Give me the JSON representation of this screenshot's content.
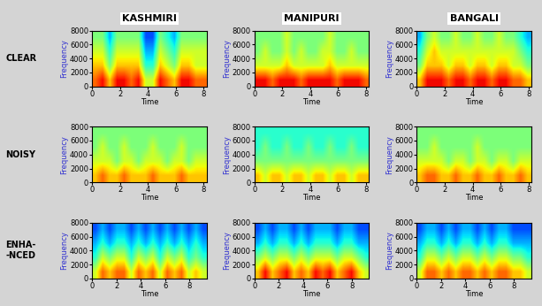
{
  "columns": [
    "KASHMIRI",
    "MANIPURI",
    "BANGALI"
  ],
  "rows": [
    "CLEAR",
    "NOISY",
    "ENHA-\n-NCED"
  ],
  "chart_data": [
    {
      "type": "heatmap",
      "xlabel": "Time",
      "ylabel": "Frequency",
      "color": "jet",
      "xlim": [
        0,
        8.2
      ],
      "ylim": [
        0,
        8000
      ],
      "xticks": [
        0,
        2,
        4,
        6,
        8
      ],
      "yticks": [
        0,
        2000,
        4000,
        6000,
        8000
      ],
      "cell_range": [
        0,
        10
      ],
      "cells": [
        [
          8,
          9,
          7,
          9,
          9,
          8,
          9,
          6,
          6,
          9,
          8,
          7,
          9,
          9,
          8,
          8
        ],
        [
          7,
          7,
          5,
          7,
          7,
          7,
          7,
          4,
          4,
          7,
          6,
          5,
          7,
          7,
          6,
          6
        ],
        [
          6,
          6,
          4,
          6,
          6,
          6,
          6,
          3,
          3,
          6,
          5,
          4,
          6,
          6,
          6,
          6
        ],
        [
          5,
          5,
          3,
          5,
          5,
          5,
          5,
          2,
          2,
          5,
          4,
          3,
          5,
          5,
          5,
          5
        ]
      ]
    },
    {
      "type": "heatmap",
      "xlabel": "Time",
      "ylabel": "Frequency",
      "color": "jet",
      "xlim": [
        0,
        8.2
      ],
      "ylim": [
        0,
        8000
      ],
      "xticks": [
        0,
        2,
        4,
        6,
        8
      ],
      "yticks": [
        0,
        2000,
        4000,
        6000,
        8000
      ],
      "cell_range": [
        0,
        10
      ],
      "cells": [
        [
          9,
          9,
          8,
          9,
          9,
          9,
          8,
          9,
          9,
          9,
          9,
          8,
          9,
          9,
          9,
          8
        ],
        [
          6,
          6,
          6,
          6,
          7,
          6,
          6,
          6,
          6,
          6,
          7,
          6,
          6,
          6,
          6,
          6
        ],
        [
          5,
          6,
          5,
          5,
          6,
          5,
          6,
          5,
          5,
          6,
          6,
          5,
          5,
          6,
          5,
          5
        ],
        [
          5,
          5,
          5,
          5,
          6,
          5,
          5,
          5,
          5,
          5,
          6,
          5,
          5,
          5,
          5,
          5
        ]
      ]
    },
    {
      "type": "heatmap",
      "xlabel": "Time",
      "ylabel": "Frequency",
      "color": "jet",
      "xlim": [
        0,
        8.2
      ],
      "ylim": [
        0,
        8000
      ],
      "xticks": [
        0,
        2,
        4,
        6,
        8
      ],
      "yticks": [
        0,
        2000,
        4000,
        6000,
        8000
      ],
      "cell_range": [
        0,
        10
      ],
      "cells": [
        [
          7,
          9,
          9,
          9,
          8,
          9,
          9,
          8,
          9,
          9,
          8,
          9,
          9,
          8,
          8,
          7
        ],
        [
          5,
          7,
          7,
          7,
          6,
          7,
          7,
          6,
          7,
          7,
          6,
          7,
          7,
          6,
          6,
          5
        ],
        [
          4,
          6,
          7,
          6,
          6,
          6,
          6,
          6,
          6,
          6,
          6,
          6,
          6,
          6,
          5,
          4
        ],
        [
          3,
          5,
          6,
          5,
          5,
          6,
          5,
          5,
          6,
          5,
          5,
          6,
          5,
          5,
          4,
          3
        ]
      ]
    },
    {
      "type": "heatmap",
      "xlabel": "Time",
      "ylabel": "Frequency",
      "color": "jet",
      "xlim": [
        0,
        8.2
      ],
      "ylim": [
        0,
        8000
      ],
      "xticks": [
        0,
        2,
        4,
        6,
        8
      ],
      "yticks": [
        0,
        2000,
        4000,
        6000,
        8000
      ],
      "cell_range": [
        0,
        10
      ],
      "cells": [
        [
          7,
          8,
          7,
          7,
          8,
          7,
          7,
          7,
          8,
          7,
          7,
          7,
          8,
          7,
          7,
          7
        ],
        [
          6,
          6,
          6,
          5,
          6,
          6,
          5,
          6,
          6,
          6,
          5,
          6,
          6,
          5,
          6,
          6
        ],
        [
          5,
          6,
          5,
          5,
          6,
          5,
          5,
          5,
          6,
          5,
          5,
          5,
          6,
          5,
          5,
          5
        ],
        [
          5,
          5,
          5,
          5,
          5,
          5,
          5,
          5,
          5,
          5,
          5,
          5,
          5,
          5,
          5,
          5
        ]
      ]
    },
    {
      "type": "heatmap",
      "xlabel": "Time",
      "ylabel": "Frequency",
      "color": "jet",
      "xlim": [
        0,
        8.2
      ],
      "ylim": [
        0,
        8000
      ],
      "xticks": [
        0,
        2,
        4,
        6,
        8
      ],
      "yticks": [
        0,
        2000,
        4000,
        6000,
        8000
      ],
      "cell_range": [
        0,
        10
      ],
      "cells": [
        [
          7,
          6,
          7,
          7,
          6,
          7,
          7,
          6,
          7,
          7,
          6,
          7,
          7,
          6,
          7,
          7
        ],
        [
          5,
          5,
          5,
          5,
          5,
          5,
          5,
          5,
          5,
          5,
          5,
          5,
          5,
          5,
          5,
          5
        ],
        [
          4,
          5,
          4,
          4,
          5,
          4,
          4,
          5,
          4,
          4,
          5,
          4,
          4,
          5,
          4,
          4
        ],
        [
          4,
          4,
          4,
          4,
          4,
          4,
          4,
          4,
          4,
          4,
          4,
          4,
          4,
          4,
          4,
          4
        ]
      ]
    },
    {
      "type": "heatmap",
      "xlabel": "Time",
      "ylabel": "Frequency",
      "color": "jet",
      "xlim": [
        0,
        8.2
      ],
      "ylim": [
        0,
        8000
      ],
      "xticks": [
        0,
        2,
        4,
        6,
        8
      ],
      "yticks": [
        0,
        2000,
        4000,
        6000,
        8000
      ],
      "cell_range": [
        0,
        10
      ],
      "cells": [
        [
          7,
          8,
          8,
          7,
          7,
          8,
          7,
          7,
          8,
          7,
          7,
          8,
          7,
          7,
          8,
          7
        ],
        [
          6,
          6,
          6,
          6,
          5,
          6,
          6,
          5,
          6,
          6,
          5,
          6,
          6,
          5,
          6,
          6
        ],
        [
          5,
          5,
          6,
          5,
          5,
          5,
          5,
          5,
          6,
          5,
          5,
          5,
          5,
          5,
          5,
          5
        ],
        [
          5,
          5,
          5,
          5,
          5,
          5,
          5,
          5,
          5,
          5,
          5,
          5,
          5,
          5,
          5,
          5
        ]
      ]
    },
    {
      "type": "heatmap",
      "xlabel": "Time",
      "ylabel": "Frequency",
      "color": "jet",
      "xlim": [
        0,
        9.4
      ],
      "ylim": [
        0,
        8000
      ],
      "xticks": [
        0,
        2,
        4,
        6,
        8
      ],
      "yticks": [
        0,
        2000,
        4000,
        6000,
        8000
      ],
      "cell_range": [
        0,
        10
      ],
      "cells": [
        [
          6,
          8,
          7,
          8,
          8,
          6,
          8,
          7,
          8,
          6,
          8,
          7,
          8,
          6,
          7,
          6
        ],
        [
          4,
          6,
          5,
          6,
          6,
          4,
          6,
          5,
          6,
          4,
          6,
          5,
          6,
          4,
          5,
          4
        ],
        [
          3,
          4,
          3,
          4,
          4,
          3,
          4,
          3,
          4,
          3,
          4,
          3,
          4,
          3,
          4,
          3
        ],
        [
          2,
          3,
          2,
          3,
          3,
          2,
          3,
          2,
          3,
          2,
          3,
          2,
          3,
          2,
          3,
          2
        ]
      ]
    },
    {
      "type": "heatmap",
      "xlabel": "Time",
      "ylabel": "Frequency",
      "color": "jet",
      "xlim": [
        0,
        9.4
      ],
      "ylim": [
        0,
        8000
      ],
      "xticks": [
        0,
        2,
        4,
        6,
        8
      ],
      "yticks": [
        0,
        2000,
        4000,
        6000,
        8000
      ],
      "cell_range": [
        0,
        10
      ],
      "cells": [
        [
          7,
          9,
          7,
          8,
          9,
          7,
          8,
          7,
          9,
          8,
          9,
          7,
          8,
          9,
          7,
          6
        ],
        [
          5,
          6,
          5,
          6,
          6,
          5,
          6,
          5,
          6,
          6,
          6,
          5,
          6,
          6,
          5,
          4
        ],
        [
          3,
          4,
          3,
          4,
          4,
          3,
          4,
          3,
          4,
          4,
          4,
          3,
          4,
          4,
          3,
          3
        ],
        [
          2,
          3,
          2,
          3,
          3,
          2,
          3,
          2,
          3,
          3,
          3,
          2,
          3,
          3,
          2,
          2
        ]
      ]
    },
    {
      "type": "heatmap",
      "xlabel": "Time",
      "ylabel": "Frequency",
      "color": "jet",
      "xlim": [
        0,
        9.4
      ],
      "ylim": [
        0,
        8000
      ],
      "xticks": [
        0,
        2,
        4,
        6,
        8
      ],
      "yticks": [
        0,
        2000,
        4000,
        6000,
        8000
      ],
      "cell_range": [
        0,
        10
      ],
      "cells": [
        [
          6,
          8,
          8,
          7,
          8,
          7,
          8,
          8,
          7,
          8,
          7,
          8,
          8,
          7,
          7,
          6
        ],
        [
          4,
          6,
          6,
          5,
          6,
          5,
          6,
          6,
          5,
          6,
          5,
          6,
          6,
          5,
          5,
          4
        ],
        [
          3,
          4,
          4,
          3,
          4,
          3,
          4,
          4,
          3,
          4,
          3,
          4,
          4,
          3,
          3,
          3
        ],
        [
          2,
          3,
          3,
          2,
          3,
          2,
          3,
          3,
          2,
          3,
          2,
          3,
          3,
          2,
          2,
          2
        ]
      ]
    }
  ]
}
